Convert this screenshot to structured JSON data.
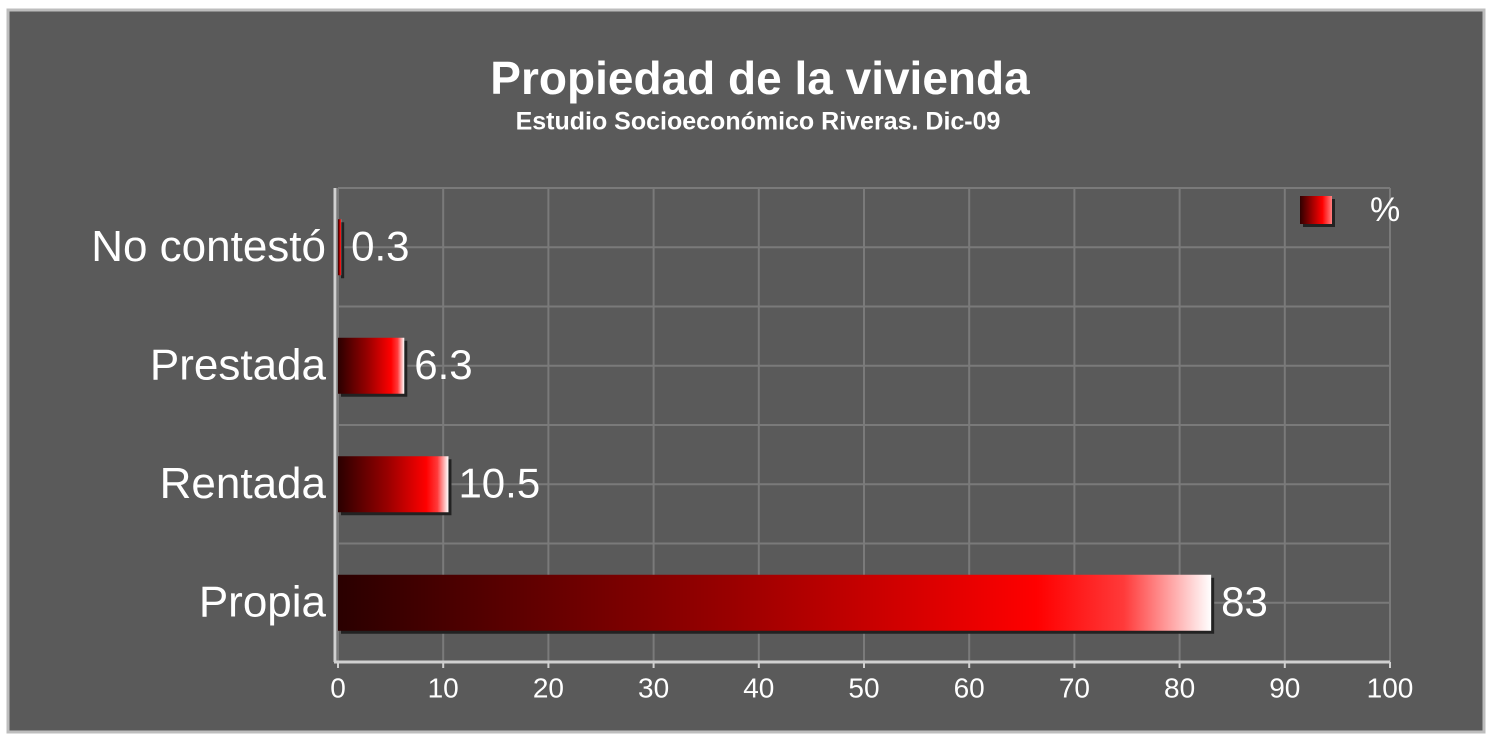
{
  "chart_data": {
    "type": "barh",
    "title": "Propiedad de la vivienda",
    "subtitle": "Estudio Socioeconómico Riveras. Dic-09",
    "categories": [
      "No contestó",
      "Prestada",
      "Rentada",
      "Propia"
    ],
    "series": [
      {
        "name": "%",
        "color": "#ff0000",
        "values": [
          0.3,
          6.3,
          10.5,
          83
        ]
      }
    ],
    "xlim": [
      0,
      100
    ],
    "xticks": [
      0,
      10,
      20,
      30,
      40,
      50,
      60,
      70,
      80,
      90,
      100
    ],
    "grid": true,
    "legend": "upper right"
  }
}
